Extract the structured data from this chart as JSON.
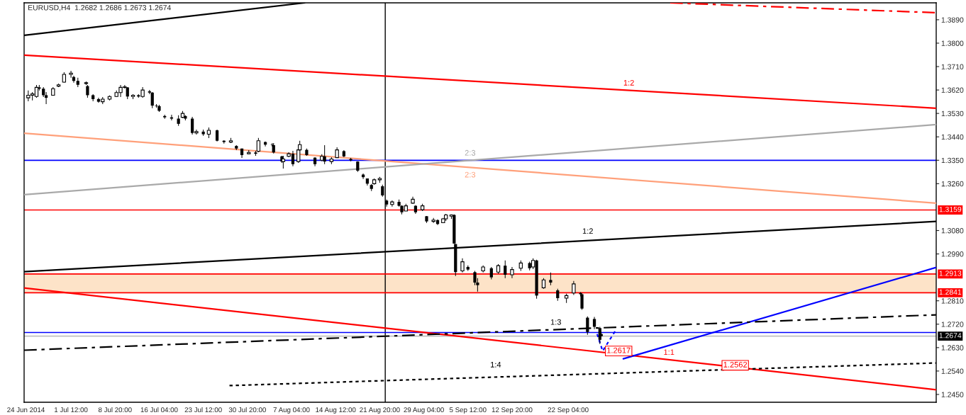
{
  "chart_data": {
    "type": "candlestick",
    "title": "EURUSD,H4  1.2682 1.2686 1.2673 1.2674",
    "color": "#000000",
    "x": [
      "2014-06-24T09:30",
      "2014-06-25T02:00",
      "2014-06-25T18:30",
      "2014-06-26T05:30",
      "2014-06-26T22:00",
      "2014-06-27T09:00",
      "2014-06-28T12:30",
      "2014-06-29T10:30",
      "2014-06-30T08:30",
      "2014-07-01T12:00",
      "2014-07-01T23:00",
      "2014-07-02T15:30",
      "2014-07-04T00:30",
      "2014-07-04T06:00",
      "2014-07-05T04:00",
      "2014-07-06T02:00",
      "2014-07-06T18:30",
      "2014-07-07T22:00",
      "2014-07-09T01:30",
      "2014-07-09T18:00",
      "2014-07-10T10:30",
      "2014-07-10T21:30",
      "2014-07-11T19:30",
      "2014-07-12T17:30",
      "2014-07-13T10:00",
      "2014-07-14T13:30",
      "2014-07-15T00:30",
      "2014-07-15T17:00",
      "2014-07-16T04:00",
      "2014-07-17T02:00",
      "2014-07-18T05:30",
      "2014-07-19T09:00",
      "2014-07-20T01:30",
      "2014-07-20T12:30",
      "2014-07-21T16:00",
      "2014-07-22T08:30",
      "2014-07-23T12:00",
      "2014-07-24T10:00",
      "2014-07-25T19:00",
      "2014-07-26T22:30",
      "2014-07-28T02:00",
      "2014-07-29T00:00",
      "2014-07-29T22:00",
      "2014-07-31T01:30",
      "2014-08-01T05:00",
      "2014-08-01T16:00",
      "2014-08-02T19:30",
      "2014-08-03T23:00",
      "2014-08-04T04:30",
      "2014-08-05T13:30",
      "2014-08-05T19:00",
      "2014-08-06T17:00",
      "2014-08-07T09:30",
      "2014-08-08T07:30",
      "2014-08-08T13:00",
      "2014-08-09T16:30",
      "2014-08-11T01:30",
      "2014-08-12T05:00",
      "2014-08-12T16:00",
      "2014-08-13T19:30",
      "2014-08-14T17:30",
      "2014-08-15T21:00",
      "2014-08-17T00:30",
      "2014-08-18T04:00",
      "2014-08-19T02:00",
      "2014-08-19T18:30",
      "2014-08-20T11:00",
      "2014-08-20T22:00",
      "2014-08-21T20:00",
      "2014-08-22T07:00",
      "2014-08-22T23:30",
      "2014-08-23T21:30",
      "2014-08-25T01:00",
      "2014-08-25T12:00",
      "2014-08-26T04:30",
      "2014-08-27T08:00",
      "2014-08-27T19:00",
      "2014-08-28T22:30",
      "2014-08-29T15:00",
      "2014-08-30T18:30",
      "2014-08-31T11:00",
      "2014-09-01T09:00",
      "2014-09-01T20:00",
      "2014-09-02T18:00",
      "2014-09-03T05:00",
      "2014-09-03T10:30",
      "2014-09-04T14:00",
      "2014-09-05T12:00",
      "2014-09-06T15:30",
      "2014-09-07T02:30",
      "2014-09-08T00:30",
      "2014-09-09T09:30",
      "2014-09-10T13:00",
      "2014-09-11T16:30",
      "2014-09-12T20:00",
      "2014-09-14T07:00",
      "2014-09-15T18:00",
      "2014-09-16T08:00",
      "2014-09-16T22:00",
      "2014-09-18T02:00",
      "2014-09-19T06:00",
      "2014-09-20T10:00",
      "2014-09-21T21:00",
      "2014-09-23T02:00",
      "2014-09-24T05:30",
      "2014-09-24T11:00",
      "2014-09-25T09:00",
      "2014-09-26T12:30",
      "2014-09-27T10:30",
      "2014-09-27T16:00"
    ],
    "ohlc": [
      [
        1.359,
        1.3618,
        1.3577,
        1.36
      ],
      [
        1.36,
        1.3612,
        1.358,
        1.3605
      ],
      [
        1.3595,
        1.3639,
        1.359,
        1.363
      ],
      [
        1.363,
        1.3639,
        1.3618,
        1.3625
      ],
      [
        1.3625,
        1.3631,
        1.3593,
        1.36
      ],
      [
        1.36,
        1.3612,
        1.3566,
        1.359
      ],
      [
        1.36,
        1.3631,
        1.3599,
        1.3625
      ],
      [
        1.3635,
        1.3645,
        1.3631,
        1.364
      ],
      [
        1.365,
        1.3688,
        1.3648,
        1.368
      ],
      [
        1.368,
        1.3694,
        1.3667,
        1.3685
      ],
      [
        1.367,
        1.3675,
        1.3648,
        1.3655
      ],
      [
        1.3655,
        1.3667,
        1.3631,
        1.364
      ],
      [
        1.3645,
        1.3653,
        1.3639,
        1.3648
      ],
      [
        1.3635,
        1.3639,
        1.359,
        1.36
      ],
      [
        1.36,
        1.3604,
        1.3577,
        1.3585
      ],
      [
        1.3585,
        1.359,
        1.3571,
        1.3575
      ],
      [
        1.3575,
        1.3593,
        1.3566,
        1.3585
      ],
      [
        1.3585,
        1.3599,
        1.358,
        1.3595
      ],
      [
        1.3595,
        1.3618,
        1.3593,
        1.361
      ],
      [
        1.361,
        1.3639,
        1.3593,
        1.363
      ],
      [
        1.363,
        1.3639,
        1.3626,
        1.3632
      ],
      [
        1.363,
        1.3631,
        1.3585,
        1.3595
      ],
      [
        1.3595,
        1.3604,
        1.3585,
        1.36
      ],
      [
        1.36,
        1.3604,
        1.359,
        1.3595
      ],
      [
        1.3595,
        1.3631,
        1.359,
        1.362
      ],
      [
        1.3615,
        1.362,
        1.3604,
        1.361
      ],
      [
        1.361,
        1.3612,
        1.355,
        1.356
      ],
      [
        1.356,
        1.3566,
        1.3552,
        1.3558
      ],
      [
        1.3558,
        1.3563,
        1.3536,
        1.354
      ],
      [
        1.352,
        1.3525,
        1.3509,
        1.3515
      ],
      [
        1.3515,
        1.3525,
        1.3503,
        1.351
      ],
      [
        1.351,
        1.3523,
        1.3482,
        1.349
      ],
      [
        1.3515,
        1.3539,
        1.3512,
        1.353
      ],
      [
        1.352,
        1.3523,
        1.3503,
        1.351
      ],
      [
        1.351,
        1.3517,
        1.3449,
        1.3455
      ],
      [
        1.3455,
        1.3468,
        1.3449,
        1.346
      ],
      [
        1.346,
        1.3468,
        1.3444,
        1.345
      ],
      [
        1.345,
        1.3476,
        1.3435,
        1.3465
      ],
      [
        1.3465,
        1.3468,
        1.3422,
        1.3425
      ],
      [
        1.3425,
        1.3427,
        1.3414,
        1.342
      ],
      [
        1.342,
        1.3436,
        1.3416,
        1.3425
      ],
      [
        1.3405,
        1.3408,
        1.3389,
        1.3395
      ],
      [
        1.3395,
        1.3395,
        1.3359,
        1.337
      ],
      [
        1.3375,
        1.3389,
        1.3373,
        1.338
      ],
      [
        1.338,
        1.3386,
        1.3367,
        1.3375
      ],
      [
        1.3385,
        1.3436,
        1.3381,
        1.3425
      ],
      [
        1.342,
        1.3422,
        1.3403,
        1.341
      ],
      [
        1.341,
        1.3416,
        1.3403,
        1.3408
      ],
      [
        1.3408,
        1.3416,
        1.3376,
        1.338
      ],
      [
        1.3365,
        1.3367,
        1.334,
        1.3345
      ],
      [
        1.3345,
        1.3367,
        1.3318,
        1.3355
      ],
      [
        1.3365,
        1.3381,
        1.3362,
        1.3375
      ],
      [
        1.3375,
        1.3386,
        1.3327,
        1.3335
      ],
      [
        1.3345,
        1.3395,
        1.334,
        1.339
      ],
      [
        1.339,
        1.3425,
        1.3389,
        1.341
      ],
      [
        1.339,
        1.3395,
        1.3367,
        1.337
      ],
      [
        1.336,
        1.3362,
        1.3327,
        1.3335
      ],
      [
        1.335,
        1.3373,
        1.3346,
        1.3365
      ],
      [
        1.3365,
        1.3408,
        1.3335,
        1.3345
      ],
      [
        1.3345,
        1.3362,
        1.3335,
        1.3355
      ],
      [
        1.336,
        1.34,
        1.3359,
        1.339
      ],
      [
        1.3385,
        1.3389,
        1.3362,
        1.3365
      ],
      [
        1.3355,
        1.3359,
        1.3346,
        1.335
      ],
      [
        1.3345,
        1.3346,
        1.3305,
        1.331
      ],
      [
        1.3295,
        1.3299,
        1.3278,
        1.3285
      ],
      [
        1.328,
        1.328,
        1.3253,
        1.326
      ],
      [
        1.3255,
        1.3259,
        1.3232,
        1.324
      ],
      [
        1.326,
        1.328,
        1.3256,
        1.3275
      ],
      [
        1.3275,
        1.3286,
        1.3264,
        1.328
      ],
      [
        1.325,
        1.3256,
        1.321,
        1.3215
      ],
      [
        1.3195,
        1.3199,
        1.3172,
        1.318
      ],
      [
        1.318,
        1.3196,
        1.3172,
        1.319
      ],
      [
        1.319,
        1.3199,
        1.3172,
        1.3175
      ],
      [
        1.3175,
        1.3177,
        1.3142,
        1.315
      ],
      [
        1.3155,
        1.3183,
        1.3155,
        1.3175
      ],
      [
        1.3185,
        1.321,
        1.3183,
        1.32
      ],
      [
        1.3175,
        1.3177,
        1.3144,
        1.315
      ],
      [
        1.316,
        1.3183,
        1.3155,
        1.3175
      ],
      [
        1.3135,
        1.3136,
        1.3109,
        1.3115
      ],
      [
        1.3115,
        1.3128,
        1.3109,
        1.312
      ],
      [
        1.312,
        1.3123,
        1.3101,
        1.3105
      ],
      [
        1.311,
        1.3128,
        1.3109,
        1.3125
      ],
      [
        1.3125,
        1.3144,
        1.3117,
        1.314
      ],
      [
        1.3135,
        1.3142,
        1.3125,
        1.314
      ],
      [
        1.314,
        1.3142,
        1.3028,
        1.303
      ],
      [
        1.3028,
        1.3028,
        1.2905,
        1.292
      ],
      [
        1.2925,
        1.2973,
        1.2919,
        1.296
      ],
      [
        1.294,
        1.2946,
        1.2925,
        1.293
      ],
      [
        1.292,
        1.2925,
        1.287,
        1.288
      ],
      [
        1.288,
        1.2897,
        1.2845,
        1.287
      ],
      [
        1.2925,
        1.2946,
        1.2919,
        1.294
      ],
      [
        1.2935,
        1.294,
        1.2892,
        1.29
      ],
      [
        1.292,
        1.2951,
        1.2914,
        1.2945
      ],
      [
        1.2945,
        1.2965,
        1.2897,
        1.291
      ],
      [
        1.291,
        1.294,
        1.2897,
        1.293
      ],
      [
        1.2935,
        1.2965,
        1.2925,
        1.2955
      ],
      [
        1.2955,
        1.296,
        1.2927,
        1.2935
      ],
      [
        1.294,
        1.2973,
        1.2932,
        1.2965
      ],
      [
        1.2965,
        1.2968,
        1.2818,
        1.283
      ],
      [
        1.286,
        1.2897,
        1.2856,
        1.289
      ],
      [
        1.289,
        1.2919,
        1.287,
        1.288
      ],
      [
        1.285,
        1.2856,
        1.281,
        1.282
      ],
      [
        1.282,
        1.2837,
        1.2802,
        1.283
      ],
      [
        1.284,
        1.2886,
        1.2832,
        1.2875
      ],
      [
        1.284,
        1.2843,
        1.2827,
        1.2835
      ],
      [
        1.2835,
        1.2837,
        1.2775,
        1.278
      ],
      [
        1.2745,
        1.275,
        1.2679,
        1.269
      ],
      [
        1.274,
        1.2748,
        1.2701,
        1.271
      ],
      [
        1.2705,
        1.271,
        1.2644,
        1.266
      ],
      [
        1.2682,
        1.2686,
        1.2673,
        1.2674
      ]
    ],
    "series": [
      {
        "type": "line",
        "color": "#000000",
        "line_style": "solid",
        "x": [
          "2014-06-23T17:00",
          "2014-08-09T08:15"
        ],
        "values": [
          1.383,
          1.3955
        ]
      },
      {
        "type": "line",
        "color": "#ff0000",
        "line_style": "dashed",
        "x": [
          "2014-10-09T03:00",
          "2014-11-22T08:30"
        ],
        "values": [
          1.3955,
          1.3917
        ]
      },
      {
        "type": "line",
        "name": "1:2",
        "color": "#ff0000",
        "line_style": "solid",
        "x": [
          "2014-06-23T17:00",
          "2014-11-22T08:30"
        ],
        "values": [
          1.3754,
          1.355
        ]
      },
      {
        "type": "line",
        "name": "2:3",
        "color": "#ffa07a",
        "line_style": "solid",
        "x": [
          "2014-06-23T17:00",
          "2014-11-22T08:30"
        ],
        "values": [
          1.3454,
          1.3185
        ]
      },
      {
        "type": "line",
        "name": "2:3",
        "color": "#a9a9a9",
        "line_style": "solid",
        "x": [
          "2014-06-23T17:00",
          "2014-11-22T08:30"
        ],
        "values": [
          1.3218,
          1.3487
        ]
      },
      {
        "type": "line",
        "name": "1:2",
        "color": "#000000",
        "line_style": "solid",
        "x": [
          "2014-06-23T17:00",
          "2014-11-22T08:30"
        ],
        "values": [
          1.2922,
          1.3115
        ]
      },
      {
        "type": "line",
        "name": "1:1",
        "color": "#ff0000",
        "line_style": "solid",
        "x": [
          "2014-06-23T17:00",
          "2014-10-17T06:48",
          "2014-11-22T08:30"
        ],
        "values": [
          1.2859,
          1.2562,
          1.2468
        ],
        "value_labels": [
          null,
          "1.2562",
          null
        ]
      },
      {
        "type": "line",
        "color": "#0000ff",
        "line_style": "solid",
        "x": [
          "2014-10-01T08:00",
          "2014-11-22T08:30"
        ],
        "values": [
          1.2587,
          1.2938
        ]
      },
      {
        "type": "line",
        "name": "1:3",
        "color": "#000000",
        "line_style": "dashed",
        "x": [
          "2014-06-23T17:00",
          "2014-11-22T08:30"
        ],
        "values": [
          1.262,
          1.2756
        ]
      },
      {
        "type": "line",
        "name": "1:4",
        "color": "#000000",
        "line_style": "dotted",
        "x": [
          "2014-07-27T20:30",
          "2014-11-22T08:30"
        ],
        "values": [
          1.2484,
          1.2571
        ]
      },
      {
        "type": "line",
        "color": "#0000ff",
        "line_style": "dotted",
        "x": [
          "2014-09-26T23:30",
          "2014-09-27T21:30",
          "2014-09-30T04:30"
        ],
        "values": [
          1.2682,
          1.2617,
          1.2701
        ],
        "value_labels": [
          null,
          "1.2617",
          null
        ]
      }
    ],
    "ref_lines": [
      {
        "axis": "x",
        "value": "2014-08-22T18:00",
        "color": "#000000"
      },
      {
        "axis": "y",
        "value": 1.335,
        "color": "#0000ff"
      },
      {
        "axis": "y",
        "value": 1.3159,
        "label": "1.3159",
        "color": "#ff0000"
      },
      {
        "axis": "y",
        "value": 1.2913,
        "label": "1.2913",
        "color": "#ff0000"
      },
      {
        "axis": "y",
        "value": 1.2841,
        "label": "1.2841",
        "color": "#ff0000"
      },
      {
        "axis": "y",
        "value": 1.2688,
        "color": "#0000ff"
      },
      {
        "axis": "y",
        "value": 1.2674,
        "label": "1.2674",
        "color": "#c0c0c0"
      }
    ],
    "bands": [
      {
        "axis": "y",
        "from": 1.2841,
        "to": 1.2913,
        "color": "#fde3c8"
      }
    ],
    "xlim": [
      "2014-06-23T17:00",
      "2014-11-22T08:30"
    ],
    "xticks": [
      {
        "value": "2014-06-24T00:00",
        "label": "24 Jun 2014"
      },
      {
        "value": "2014-07-01T12:00",
        "label": "1 Jul 12:00"
      },
      {
        "value": "2014-07-08T20:00",
        "label": "8 Jul 20:00"
      },
      {
        "value": "2014-07-16T04:00",
        "label": "16 Jul 04:00"
      },
      {
        "value": "2014-07-23T12:00",
        "label": "23 Jul 12:00"
      },
      {
        "value": "2014-07-30T20:00",
        "label": "30 Jul 20:00"
      },
      {
        "value": "2014-08-07T04:00",
        "label": "7 Aug 04:00"
      },
      {
        "value": "2014-08-14T12:00",
        "label": "14 Aug 12:00"
      },
      {
        "value": "2014-08-21T20:00",
        "label": "21 Aug 20:00"
      },
      {
        "value": "2014-08-29T04:00",
        "label": "29 Aug 04:00"
      },
      {
        "value": "2014-09-05T12:00",
        "label": "5 Sep 12:00"
      },
      {
        "value": "2014-09-12T20:00",
        "label": "12 Sep 20:00"
      },
      {
        "value": "2014-09-22T04:00",
        "label": "22 Sep 04:00"
      }
    ],
    "ylim": [
      1.242,
      1.3955
    ],
    "yticks": [
      {
        "value": 1.245,
        "label": "1.2450"
      },
      {
        "value": 1.254,
        "label": "1.2540"
      },
      {
        "value": 1.263,
        "label": "1.2630"
      },
      {
        "value": 1.272,
        "label": "1.2720"
      },
      {
        "value": 1.281,
        "label": "1.2810"
      },
      {
        "value": 1.299,
        "label": "1.2990"
      },
      {
        "value": 1.308,
        "label": "1.3080"
      },
      {
        "value": 1.326,
        "label": "1.3260"
      },
      {
        "value": 1.335,
        "label": "1.3350"
      },
      {
        "value": 1.344,
        "label": "1.3440"
      },
      {
        "value": 1.353,
        "label": "1.3530"
      },
      {
        "value": 1.362,
        "label": "1.3620"
      },
      {
        "value": 1.371,
        "label": "1.3710"
      },
      {
        "value": 1.38,
        "label": "1.3800"
      },
      {
        "value": 1.389,
        "label": "1.3890"
      }
    ],
    "grid": false
  }
}
